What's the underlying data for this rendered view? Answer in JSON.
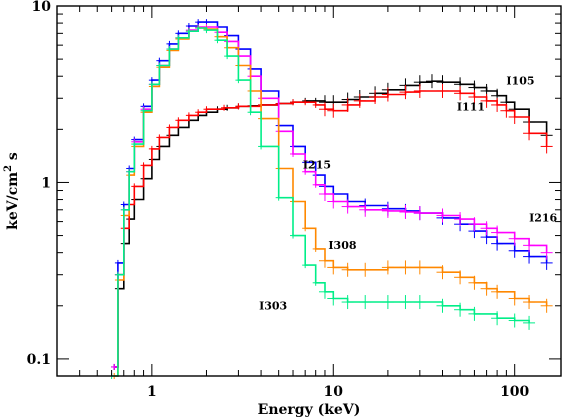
{
  "chart_data": {
    "type": "line",
    "xlabel": "Energy (keV)",
    "ylabel_main": "keV/cm",
    "ylabel_sup": "2",
    "ylabel_tail": " s",
    "x_scale": "log",
    "y_scale": "log",
    "xlim": [
      0.3,
      180
    ],
    "ylim": [
      0.08,
      10
    ],
    "x_ticks": [
      {
        "value": 1,
        "label": "1"
      },
      {
        "value": 10,
        "label": "10"
      },
      {
        "value": 100,
        "label": "100"
      }
    ],
    "y_ticks": [
      {
        "value": 0.1,
        "label": "0.1"
      },
      {
        "value": 1,
        "label": "1"
      },
      {
        "value": 10,
        "label": "10"
      }
    ],
    "grid": false,
    "series": [
      {
        "name": "I105",
        "color": "#000000",
        "label_pos": [
          90,
          3.6
        ],
        "points": [
          [
            0.62,
            0.09
          ],
          [
            0.65,
            0.25
          ],
          [
            0.7,
            0.45
          ],
          [
            0.75,
            0.62
          ],
          [
            0.8,
            0.8
          ],
          [
            0.9,
            1.05
          ],
          [
            1.0,
            1.35
          ],
          [
            1.1,
            1.6
          ],
          [
            1.25,
            1.85
          ],
          [
            1.4,
            2.05
          ],
          [
            1.6,
            2.25
          ],
          [
            1.8,
            2.4
          ],
          [
            2.0,
            2.5
          ],
          [
            2.3,
            2.6
          ],
          [
            2.6,
            2.65
          ],
          [
            3.0,
            2.7
          ],
          [
            3.5,
            2.72
          ],
          [
            4.0,
            2.75
          ],
          [
            5.0,
            2.8
          ],
          [
            6.0,
            2.85
          ],
          [
            7.0,
            2.9
          ],
          [
            8.0,
            2.9
          ],
          [
            9.0,
            2.85
          ],
          [
            10.0,
            2.85
          ],
          [
            12.0,
            2.95
          ],
          [
            14.0,
            3.05
          ],
          [
            17.0,
            3.2
          ],
          [
            20.0,
            3.35
          ],
          [
            25.0,
            3.55
          ],
          [
            30.0,
            3.7
          ],
          [
            35.0,
            3.75
          ],
          [
            40.0,
            3.7
          ],
          [
            50.0,
            3.6
          ],
          [
            60.0,
            3.45
          ],
          [
            70.0,
            3.3
          ],
          [
            80.0,
            3.1
          ],
          [
            90.0,
            2.85
          ],
          [
            100.0,
            2.6
          ],
          [
            120.0,
            2.2
          ],
          [
            150.0,
            1.85
          ]
        ]
      },
      {
        "name": "I111",
        "color": "#ff0000",
        "label_pos": [
          48,
          2.55
        ],
        "points": [
          [
            0.62,
            0.09
          ],
          [
            0.65,
            0.3
          ],
          [
            0.7,
            0.55
          ],
          [
            0.75,
            0.75
          ],
          [
            0.8,
            0.95
          ],
          [
            0.9,
            1.25
          ],
          [
            1.0,
            1.55
          ],
          [
            1.1,
            1.8
          ],
          [
            1.25,
            2.05
          ],
          [
            1.4,
            2.25
          ],
          [
            1.6,
            2.4
          ],
          [
            1.8,
            2.5
          ],
          [
            2.0,
            2.6
          ],
          [
            2.5,
            2.65
          ],
          [
            3.0,
            2.7
          ],
          [
            3.5,
            2.7
          ],
          [
            4.0,
            2.75
          ],
          [
            5.0,
            2.8
          ],
          [
            6.0,
            2.85
          ],
          [
            7.0,
            2.85
          ],
          [
            8.0,
            2.75
          ],
          [
            9.0,
            2.6
          ],
          [
            10.0,
            2.55
          ],
          [
            12.0,
            2.75
          ],
          [
            14.0,
            2.9
          ],
          [
            17.0,
            3.05
          ],
          [
            20.0,
            3.15
          ],
          [
            25.0,
            3.25
          ],
          [
            30.0,
            3.3
          ],
          [
            40.0,
            3.3
          ],
          [
            50.0,
            3.2
          ],
          [
            60.0,
            3.05
          ],
          [
            70.0,
            2.9
          ],
          [
            80.0,
            2.75
          ],
          [
            90.0,
            2.55
          ],
          [
            100.0,
            2.35
          ],
          [
            120.0,
            1.9
          ],
          [
            150.0,
            1.6
          ]
        ]
      },
      {
        "name": "I215",
        "color": "#0000ff",
        "label_pos": [
          6.8,
          1.2
        ],
        "points": [
          [
            0.62,
            0.09
          ],
          [
            0.65,
            0.35
          ],
          [
            0.7,
            0.75
          ],
          [
            0.75,
            1.2
          ],
          [
            0.8,
            1.75
          ],
          [
            0.9,
            2.7
          ],
          [
            1.0,
            3.8
          ],
          [
            1.1,
            4.9
          ],
          [
            1.25,
            6.1
          ],
          [
            1.4,
            7.0
          ],
          [
            1.6,
            7.7
          ],
          [
            1.8,
            8.1
          ],
          [
            2.0,
            8.1
          ],
          [
            2.3,
            7.6
          ],
          [
            2.6,
            6.8
          ],
          [
            3.0,
            5.7
          ],
          [
            3.5,
            4.4
          ],
          [
            4.0,
            3.3
          ],
          [
            5.0,
            2.1
          ],
          [
            6.0,
            1.6
          ],
          [
            7.0,
            1.3
          ],
          [
            8.0,
            1.1
          ],
          [
            9.0,
            0.95
          ],
          [
            10.0,
            0.86
          ],
          [
            12.0,
            0.78
          ],
          [
            15.0,
            0.74
          ],
          [
            20.0,
            0.71
          ],
          [
            25.0,
            0.69
          ],
          [
            30.0,
            0.67
          ],
          [
            40.0,
            0.63
          ],
          [
            50.0,
            0.58
          ],
          [
            60.0,
            0.53
          ],
          [
            70.0,
            0.49
          ],
          [
            80.0,
            0.45
          ],
          [
            100.0,
            0.41
          ],
          [
            120.0,
            0.38
          ],
          [
            150.0,
            0.35
          ]
        ]
      },
      {
        "name": "I216",
        "color": "#ff00ff",
        "label_pos": [
          120,
          0.6
        ],
        "points": [
          [
            0.62,
            0.09
          ],
          [
            0.65,
            0.3
          ],
          [
            0.7,
            0.7
          ],
          [
            0.75,
            1.15
          ],
          [
            0.8,
            1.7
          ],
          [
            0.9,
            2.6
          ],
          [
            1.0,
            3.6
          ],
          [
            1.1,
            4.6
          ],
          [
            1.25,
            5.7
          ],
          [
            1.4,
            6.6
          ],
          [
            1.6,
            7.3
          ],
          [
            1.8,
            7.6
          ],
          [
            2.0,
            7.6
          ],
          [
            2.3,
            7.1
          ],
          [
            2.6,
            6.3
          ],
          [
            3.0,
            5.2
          ],
          [
            3.5,
            4.0
          ],
          [
            4.0,
            3.0
          ],
          [
            5.0,
            1.95
          ],
          [
            6.0,
            1.45
          ],
          [
            7.0,
            1.15
          ],
          [
            8.0,
            0.97
          ],
          [
            9.0,
            0.86
          ],
          [
            10.0,
            0.78
          ],
          [
            12.0,
            0.73
          ],
          [
            15.0,
            0.7
          ],
          [
            20.0,
            0.69
          ],
          [
            25.0,
            0.68
          ],
          [
            30.0,
            0.67
          ],
          [
            40.0,
            0.65
          ],
          [
            50.0,
            0.62
          ],
          [
            60.0,
            0.58
          ],
          [
            70.0,
            0.55
          ],
          [
            80.0,
            0.52
          ],
          [
            100.0,
            0.48
          ],
          [
            120.0,
            0.44
          ],
          [
            150.0,
            0.4
          ]
        ]
      },
      {
        "name": "I308",
        "color": "#ff8800",
        "label_pos": [
          9.4,
          0.42
        ],
        "points": [
          [
            0.62,
            0.08
          ],
          [
            0.65,
            0.28
          ],
          [
            0.7,
            0.65
          ],
          [
            0.75,
            1.1
          ],
          [
            0.8,
            1.6
          ],
          [
            0.9,
            2.5
          ],
          [
            1.0,
            3.5
          ],
          [
            1.1,
            4.5
          ],
          [
            1.25,
            5.6
          ],
          [
            1.4,
            6.5
          ],
          [
            1.6,
            7.2
          ],
          [
            1.8,
            7.5
          ],
          [
            2.0,
            7.4
          ],
          [
            2.3,
            6.7
          ],
          [
            2.6,
            5.8
          ],
          [
            3.0,
            4.6
          ],
          [
            3.5,
            3.3
          ],
          [
            4.0,
            2.3
          ],
          [
            5.0,
            1.2
          ],
          [
            6.0,
            0.78
          ],
          [
            7.0,
            0.55
          ],
          [
            8.0,
            0.42
          ],
          [
            9.0,
            0.36
          ],
          [
            10.0,
            0.33
          ],
          [
            12.0,
            0.32
          ],
          [
            15.0,
            0.32
          ],
          [
            20.0,
            0.33
          ],
          [
            25.0,
            0.33
          ],
          [
            30.0,
            0.33
          ],
          [
            40.0,
            0.31
          ],
          [
            50.0,
            0.29
          ],
          [
            60.0,
            0.27
          ],
          [
            70.0,
            0.25
          ],
          [
            80.0,
            0.24
          ],
          [
            100.0,
            0.22
          ],
          [
            120.0,
            0.21
          ],
          [
            150.0,
            0.2
          ]
        ]
      },
      {
        "name": "I303",
        "color": "#00ee88",
        "label_pos": [
          3.9,
          0.19
        ],
        "points": [
          [
            0.6,
            0.08
          ],
          [
            0.65,
            0.3
          ],
          [
            0.7,
            0.7
          ],
          [
            0.75,
            1.15
          ],
          [
            0.8,
            1.65
          ],
          [
            0.9,
            2.55
          ],
          [
            1.0,
            3.6
          ],
          [
            1.1,
            4.6
          ],
          [
            1.25,
            5.7
          ],
          [
            1.4,
            6.6
          ],
          [
            1.6,
            7.2
          ],
          [
            1.8,
            7.5
          ],
          [
            2.0,
            7.3
          ],
          [
            2.3,
            6.4
          ],
          [
            2.6,
            5.2
          ],
          [
            3.0,
            3.8
          ],
          [
            3.5,
            2.5
          ],
          [
            4.0,
            1.6
          ],
          [
            5.0,
            0.82
          ],
          [
            6.0,
            0.5
          ],
          [
            7.0,
            0.34
          ],
          [
            8.0,
            0.27
          ],
          [
            9.0,
            0.24
          ],
          [
            10.0,
            0.22
          ],
          [
            12.0,
            0.21
          ],
          [
            15.0,
            0.21
          ],
          [
            20.0,
            0.21
          ],
          [
            25.0,
            0.21
          ],
          [
            30.0,
            0.21
          ],
          [
            40.0,
            0.2
          ],
          [
            50.0,
            0.19
          ],
          [
            60.0,
            0.18
          ],
          [
            80.0,
            0.17
          ],
          [
            100.0,
            0.165
          ],
          [
            120.0,
            0.16
          ]
        ]
      }
    ]
  }
}
